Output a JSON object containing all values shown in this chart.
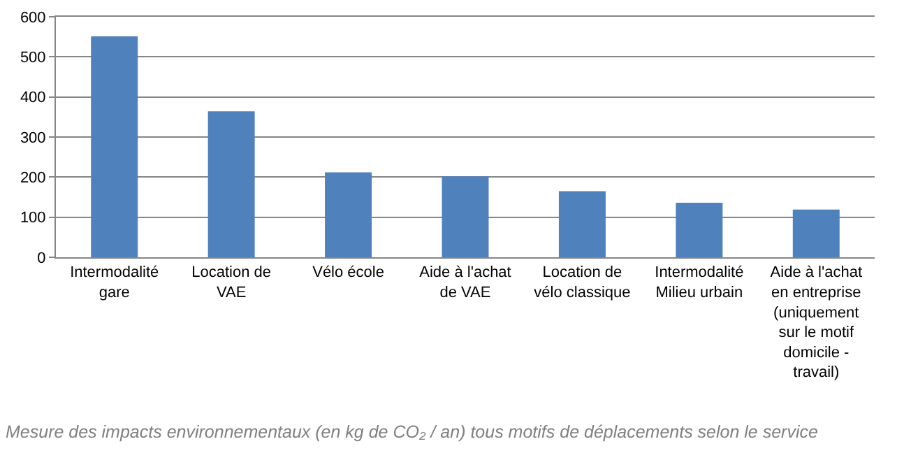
{
  "chart_data": {
    "type": "bar",
    "categories": [
      "Intermodalité gare",
      "Location de VAE",
      "Vélo école",
      "Aide à l'achat de VAE",
      "Location de vélo classique",
      "Intermodalité Milieu urbain",
      "Aide à l'achat en entreprise (uniquement sur le motif domicile - travail)"
    ],
    "values": [
      551,
      364,
      212,
      202,
      165,
      136,
      119
    ],
    "color": "#4f81bd",
    "ylim": [
      0,
      600
    ],
    "yticks": [
      0,
      100,
      200,
      300,
      400,
      500,
      600
    ],
    "grid": "y",
    "annotations": [
      "Mesure des impacts environnementaux (en kg de CO₂ / an) tous motifs de déplacements selon le service"
    ]
  }
}
